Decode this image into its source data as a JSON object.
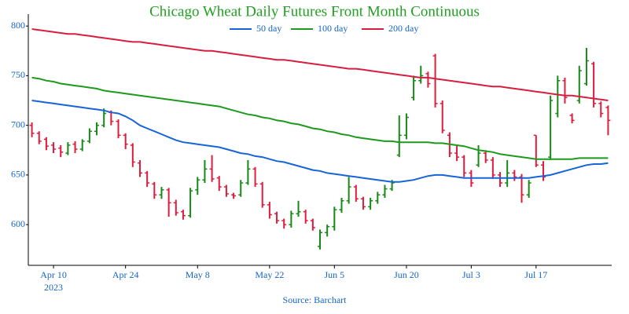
{
  "chart_data": {
    "type": "ohlc",
    "title": "Chicago Wheat Daily Futures Front Month Continuous",
    "source": "Source: Barchart",
    "year_label": "2023",
    "categories": [
      null,
      null,
      null,
      "Apr 10",
      null,
      null,
      null,
      null,
      null,
      null,
      null,
      null,
      null,
      "Apr 24",
      null,
      null,
      null,
      null,
      null,
      null,
      null,
      null,
      null,
      "May 8",
      null,
      null,
      null,
      null,
      null,
      null,
      null,
      null,
      null,
      "May 22",
      null,
      null,
      null,
      null,
      null,
      null,
      null,
      null,
      "Jun 5",
      null,
      null,
      null,
      null,
      null,
      null,
      null,
      null,
      null,
      "Jun 20",
      null,
      null,
      null,
      null,
      null,
      null,
      null,
      null,
      "Jul 3",
      null,
      null,
      null,
      null,
      null,
      null,
      null,
      null,
      "Jul 17",
      null,
      null,
      null,
      null,
      null,
      null,
      null,
      null,
      null,
      null
    ],
    "ohlc": {
      "open": [
        700,
        692,
        686,
        680,
        677,
        672,
        681,
        676,
        684,
        694,
        700,
        713,
        704,
        690,
        680,
        662,
        652,
        641,
        630,
        635,
        622,
        613,
        609,
        635,
        645,
        656,
        647,
        638,
        630,
        630,
        642,
        656,
        641,
        620,
        611,
        604,
        600,
        611,
        613,
        604,
        578,
        592,
        598,
        615,
        624,
        638,
        626,
        618,
        624,
        630,
        636,
        670,
        690,
        728,
        745,
        752,
        770,
        722,
        690,
        672,
        668,
        652,
        660,
        672,
        665,
        650,
        642,
        652,
        648,
        630,
        690,
        660,
        668,
        712,
        745,
        710,
        725,
        742,
        762,
        722,
        718
      ],
      "high": [
        703,
        694,
        688,
        683,
        680,
        683,
        684,
        686,
        697,
        703,
        717,
        715,
        706,
        692,
        682,
        665,
        654,
        643,
        638,
        637,
        625,
        615,
        637,
        648,
        665,
        670,
        649,
        640,
        632,
        645,
        665,
        658,
        643,
        623,
        613,
        606,
        614,
        624,
        615,
        606,
        595,
        600,
        618,
        627,
        648,
        640,
        628,
        627,
        633,
        640,
        645,
        710,
        712,
        750,
        760,
        754,
        772,
        725,
        693,
        680,
        670,
        655,
        680,
        675,
        668,
        653,
        665,
        655,
        651,
        645,
        690,
        664,
        730,
        750,
        748,
        712,
        760,
        778,
        764,
        724,
        720
      ],
      "low": [
        688,
        681,
        675,
        672,
        668,
        670,
        672,
        674,
        682,
        690,
        698,
        700,
        687,
        676,
        658,
        648,
        638,
        626,
        626,
        608,
        609,
        605,
        607,
        630,
        642,
        643,
        634,
        628,
        626,
        628,
        640,
        638,
        617,
        606,
        601,
        596,
        597,
        608,
        601,
        594,
        575,
        588,
        594,
        612,
        621,
        623,
        615,
        615,
        621,
        627,
        634,
        668,
        686,
        725,
        742,
        738,
        718,
        692,
        668,
        664,
        648,
        638,
        658,
        662,
        646,
        638,
        638,
        644,
        622,
        627,
        658,
        644,
        665,
        708,
        722,
        702,
        722,
        740,
        718,
        708,
        690
      ],
      "close": [
        692,
        684,
        679,
        676,
        673,
        680,
        676,
        684,
        694,
        700,
        712,
        704,
        690,
        681,
        663,
        652,
        642,
        630,
        635,
        622,
        612,
        609,
        634,
        645,
        656,
        646,
        638,
        631,
        629,
        642,
        656,
        641,
        620,
        610,
        604,
        600,
        611,
        613,
        604,
        597,
        592,
        598,
        615,
        624,
        638,
        626,
        618,
        624,
        630,
        636,
        642,
        690,
        708,
        745,
        750,
        742,
        722,
        695,
        672,
        668,
        652,
        642,
        672,
        665,
        650,
        642,
        652,
        648,
        630,
        642,
        660,
        648,
        725,
        745,
        728,
        705,
        755,
        765,
        722,
        712,
        705
      ]
    },
    "up_color": "#168a16",
    "down_color": "#e01c3c",
    "moving_averages": [
      {
        "name": "50 day",
        "color": "#1664d9",
        "values": [
          725,
          724,
          723,
          722,
          721,
          720,
          719,
          718,
          717,
          716,
          715,
          713,
          712,
          709,
          705,
          700,
          697,
          694,
          691,
          688,
          685,
          683,
          682,
          681,
          680,
          679,
          678,
          676,
          674,
          672,
          671,
          669,
          668,
          666,
          664,
          663,
          661,
          659,
          657,
          655,
          654,
          652,
          651,
          650,
          649,
          648,
          647,
          646,
          645,
          644,
          643,
          643,
          644,
          645,
          647,
          649,
          650,
          650,
          649,
          648,
          647,
          647,
          647,
          647,
          647,
          647,
          647,
          647,
          647,
          647,
          648,
          649,
          650,
          652,
          654,
          656,
          658,
          660,
          661,
          661,
          662
        ]
      },
      {
        "name": "100 day",
        "color": "#1c9a1c",
        "values": [
          748,
          747,
          745,
          744,
          742,
          741,
          740,
          739,
          738,
          737,
          735,
          734,
          733,
          732,
          731,
          730,
          729,
          728,
          727,
          726,
          725,
          724,
          723,
          722,
          721,
          720,
          719,
          717,
          715,
          713,
          711,
          710,
          708,
          707,
          705,
          704,
          702,
          701,
          699,
          697,
          696,
          694,
          693,
          691,
          690,
          688,
          687,
          686,
          685,
          684,
          684,
          683,
          683,
          683,
          683,
          683,
          682,
          682,
          681,
          680,
          679,
          677,
          675,
          674,
          673,
          671,
          670,
          669,
          668,
          667,
          666,
          666,
          666,
          666,
          666,
          666,
          667,
          667,
          667,
          667,
          667
        ]
      },
      {
        "name": "200 day",
        "color": "#d81e3e",
        "values": [
          797,
          796,
          795,
          794,
          793,
          792,
          792,
          791,
          790,
          789,
          788,
          787,
          786,
          785,
          784,
          784,
          783,
          782,
          781,
          780,
          779,
          778,
          777,
          776,
          775,
          775,
          774,
          773,
          772,
          771,
          770,
          769,
          768,
          767,
          766,
          766,
          765,
          764,
          763,
          762,
          761,
          760,
          759,
          758,
          757,
          757,
          756,
          755,
          754,
          753,
          752,
          751,
          750,
          749,
          748,
          748,
          747,
          746,
          745,
          744,
          743,
          742,
          741,
          740,
          739,
          739,
          738,
          737,
          736,
          735,
          734,
          733,
          732,
          731,
          730,
          730,
          729,
          728,
          727,
          726,
          725
        ]
      }
    ],
    "ylim": [
      559,
      812
    ],
    "yticks": [
      600,
      650,
      700,
      750,
      800
    ],
    "grid": false
  }
}
